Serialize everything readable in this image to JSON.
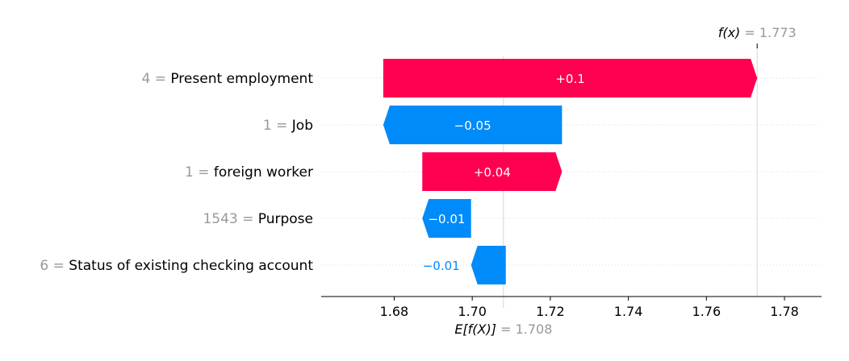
{
  "chart_data": {
    "type": "waterfall",
    "base_label": "E[f(X)]",
    "base_value": 1.708,
    "base_value_text": "= 1.708",
    "output_label": "f(x)",
    "output_value": 1.773,
    "output_value_text": "= 1.773",
    "xlim": [
      1.6613,
      1.7895
    ],
    "xticks": [
      1.68,
      1.7,
      1.72,
      1.74,
      1.76,
      1.78
    ],
    "xtick_labels": [
      "1.68",
      "1.70",
      "1.72",
      "1.74",
      "1.76",
      "1.78"
    ],
    "features": [
      {
        "value": "4 =",
        "name": "Present employment",
        "start": 1.6772,
        "end": 1.773,
        "label": "+0.1",
        "sign": "positive"
      },
      {
        "value": "1 =",
        "name": "Job",
        "start": 1.723,
        "end": 1.6772,
        "label": "−0.05",
        "sign": "negative"
      },
      {
        "value": "1 =",
        "name": "foreign worker",
        "start": 1.6872,
        "end": 1.723,
        "label": "+0.04",
        "sign": "positive"
      },
      {
        "value": "1543 =",
        "name": "Purpose",
        "start": 1.6997,
        "end": 1.6872,
        "label": "−0.01",
        "sign": "negative"
      },
      {
        "value": "6 =",
        "name": "Status of existing checking account",
        "start": 1.7086,
        "end": 1.6997,
        "label": "−0.01",
        "sign": "negative"
      }
    ],
    "colors": {
      "positive": "#ff0051",
      "negative": "#008bfb",
      "axis": "#000000",
      "grid": "#cccccc",
      "muted": "#999999"
    }
  }
}
